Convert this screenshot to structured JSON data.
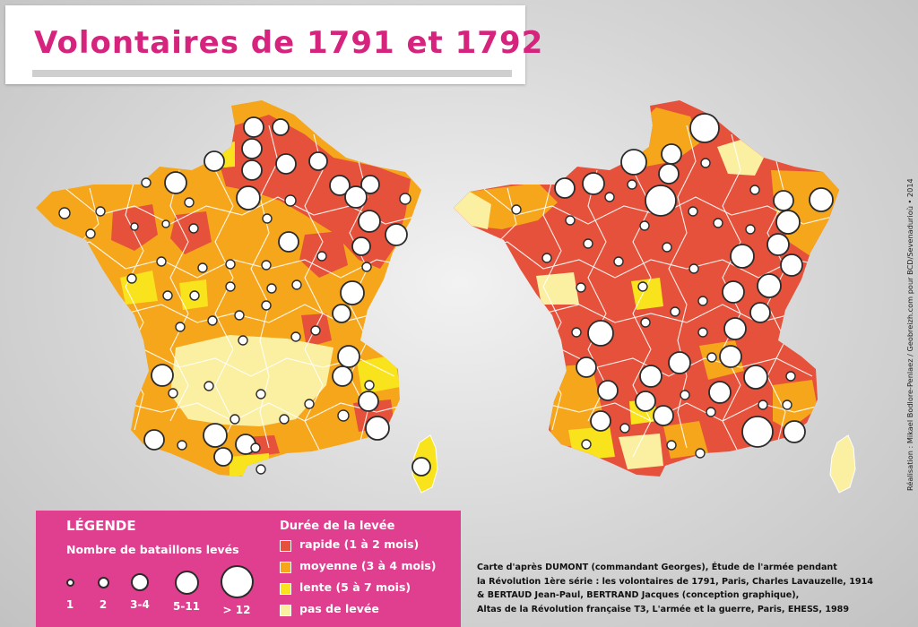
{
  "title": "Volontaires de 1791 et 1792",
  "colors": {
    "title": "#d6247e",
    "rapide": "#e5513a",
    "moyenne": "#f5a61b",
    "lente": "#f9e31c",
    "pas_de_levee": "#fbefa2",
    "legend_bg": "#e03e8f",
    "border": "#ffffff",
    "bubble_fill": "#ffffff",
    "bubble_stroke": "#2b2b2b"
  },
  "legend": {
    "heading": "LÉGENDE",
    "size_heading": "Nombre de bataillons levés",
    "sizes": [
      {
        "label": "1",
        "bataillons": 1
      },
      {
        "label": "2",
        "bataillons": 2
      },
      {
        "label": "3-4",
        "bataillons": 3.5
      },
      {
        "label": "5-11",
        "bataillons": 8
      },
      {
        "label": "> 12",
        "bataillons": 13
      }
    ],
    "duration_heading": "Durée de la levée",
    "durations": [
      {
        "label": "rapide (1 à 2 mois)",
        "color": "#e5513a"
      },
      {
        "label": "moyenne (3 à 4 mois)",
        "color": "#f5a61b"
      },
      {
        "label": "lente (5 à 7 mois)",
        "color": "#f9e31c"
      },
      {
        "label": "pas de levée",
        "color": "#fbefa2"
      }
    ]
  },
  "source": [
    "Carte d'après DUMONT (commandant Georges), Étude de l'armée pendant",
    "la Révolution 1ère série : les volontaires de 1791, Paris, Charles Lavauzelle, 1914",
    "& BERTAUD Jean-Paul, BERTRAND Jacques (conception graphique),",
    "Altas de la Révolution française T3, L'armée et la guerre, Paris, EHESS, 1989"
  ],
  "credit": "Réalisation : Mikael Bodlore-Penlaez / Geobreizh.com pour BCD/Sevenadurioù • 2014"
}
